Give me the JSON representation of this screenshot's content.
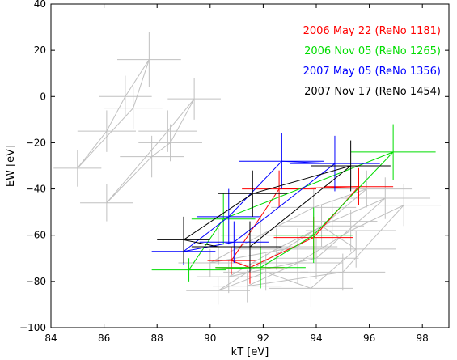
{
  "chart_data": {
    "type": "scatter",
    "title": "",
    "xlabel": "kT [eV]",
    "ylabel": "EW [eV]",
    "xlim": [
      84,
      99
    ],
    "ylim": [
      -100,
      40
    ],
    "xticks": [
      84,
      86,
      88,
      90,
      92,
      94,
      96,
      98
    ],
    "yticks": [
      -100,
      -80,
      -60,
      -40,
      -20,
      0,
      20,
      40
    ],
    "grid": false,
    "legend_placement": "top-right",
    "series": [
      {
        "name": "2006 May 22 (ReNo 1181)",
        "color": "#ff0000",
        "points": [
          {
            "x": 90.8,
            "y": -71,
            "xerr": 0.9,
            "yerr": 6
          },
          {
            "x": 91.5,
            "y": -74,
            "xerr": 1.3,
            "yerr": 7
          },
          {
            "x": 92.6,
            "y": -40,
            "xerr": 1.4,
            "yerr": 8
          },
          {
            "x": 93.9,
            "y": -61,
            "xerr": 1.5,
            "yerr": 9
          },
          {
            "x": 95.6,
            "y": -39,
            "xerr": 1.3,
            "yerr": 8
          }
        ],
        "polygon_order": [
          0,
          1,
          3,
          4,
          2,
          0
        ]
      },
      {
        "name": "2006 Nov 05 (ReNo 1265)",
        "color": "#00dd00",
        "points": [
          {
            "x": 89.2,
            "y": -75,
            "xerr": 1.4,
            "yerr": 5
          },
          {
            "x": 90.5,
            "y": -53,
            "xerr": 1.2,
            "yerr": 11
          },
          {
            "x": 91.9,
            "y": -74,
            "xerr": 1.7,
            "yerr": 9
          },
          {
            "x": 93.9,
            "y": -60,
            "xerr": 1.5,
            "yerr": 12
          },
          {
            "x": 96.9,
            "y": -24,
            "xerr": 1.6,
            "yerr": 12
          }
        ],
        "polygon_order": [
          0,
          1,
          4,
          3,
          2,
          0
        ]
      },
      {
        "name": "2007 May 05 (ReNo 1356)",
        "color": "#0000ff",
        "points": [
          {
            "x": 89.0,
            "y": -67,
            "xerr": 1.2,
            "yerr": 6
          },
          {
            "x": 90.7,
            "y": -52,
            "xerr": 1.2,
            "yerr": 12
          },
          {
            "x": 90.9,
            "y": -63,
            "xerr": 1.3,
            "yerr": 9
          },
          {
            "x": 92.7,
            "y": -28,
            "xerr": 1.6,
            "yerr": 12
          },
          {
            "x": 94.7,
            "y": -29,
            "xerr": 1.7,
            "yerr": 12
          }
        ],
        "polygon_order": [
          0,
          1,
          3,
          4,
          2,
          0
        ]
      },
      {
        "name": "2007 Nov 17 (ReNo 1454)",
        "color": "#000000",
        "points": [
          {
            "x": 89.0,
            "y": -62,
            "xerr": 1.0,
            "yerr": 10
          },
          {
            "x": 90.3,
            "y": -65,
            "xerr": 1.0,
            "yerr": 8
          },
          {
            "x": 91.6,
            "y": -42,
            "xerr": 1.3,
            "yerr": 10
          },
          {
            "x": 91.5,
            "y": -65,
            "xerr": 1.2,
            "yerr": 11
          },
          {
            "x": 95.3,
            "y": -30,
            "xerr": 1.5,
            "yerr": 11
          }
        ],
        "polygon_order": [
          0,
          2,
          4,
          3,
          1,
          0
        ]
      }
    ],
    "background": {
      "color": "#c0c0c0",
      "groups": [
        {
          "points": [
            {
              "x": 85.0,
              "y": -31,
              "xerr": 0.9,
              "yerr": 8
            },
            {
              "x": 86.1,
              "y": -15,
              "xerr": 1.1,
              "yerr": 9
            },
            {
              "x": 86.8,
              "y": 0,
              "xerr": 1.0,
              "yerr": 9
            },
            {
              "x": 87.7,
              "y": 16,
              "xerr": 1.2,
              "yerr": 12
            },
            {
              "x": 87.1,
              "y": -5,
              "xerr": 1.1,
              "yerr": 9
            }
          ],
          "polygon_order": [
            0,
            1,
            2,
            3,
            4,
            0
          ]
        },
        {
          "points": [
            {
              "x": 86.1,
              "y": -46,
              "xerr": 1.0,
              "yerr": 8
            },
            {
              "x": 87.8,
              "y": -26,
              "xerr": 1.2,
              "yerr": 9
            },
            {
              "x": 88.5,
              "y": -20,
              "xerr": 1.2,
              "yerr": 8
            },
            {
              "x": 89.4,
              "y": -1,
              "xerr": 1.0,
              "yerr": 9
            },
            {
              "x": 88.4,
              "y": -15,
              "xerr": 1.1,
              "yerr": 9
            }
          ],
          "polygon_order": [
            0,
            1,
            2,
            3,
            4,
            0
          ]
        },
        {
          "points": [
            {
              "x": 90.0,
              "y": -72,
              "xerr": 1.2,
              "yerr": 6
            },
            {
              "x": 91.9,
              "y": -60,
              "xerr": 1.5,
              "yerr": 8
            },
            {
              "x": 93.9,
              "y": -48,
              "xerr": 1.6,
              "yerr": 8
            },
            {
              "x": 95.9,
              "y": -40,
              "xerr": 1.7,
              "yerr": 8
            },
            {
              "x": 93.3,
              "y": -65,
              "xerr": 1.5,
              "yerr": 8
            }
          ],
          "polygon_order": [
            0,
            1,
            2,
            3,
            4,
            0
          ]
        },
        {
          "points": [
            {
              "x": 90.7,
              "y": -78,
              "xerr": 1.2,
              "yerr": 7
            },
            {
              "x": 92.5,
              "y": -66,
              "xerr": 1.6,
              "yerr": 9
            },
            {
              "x": 94.6,
              "y": -54,
              "xerr": 1.7,
              "yerr": 9
            },
            {
              "x": 96.6,
              "y": -44,
              "xerr": 1.7,
              "yerr": 9
            },
            {
              "x": 94.0,
              "y": -70,
              "xerr": 1.6,
              "yerr": 9
            }
          ],
          "polygon_order": [
            0,
            1,
            2,
            3,
            4,
            0
          ]
        },
        {
          "points": [
            {
              "x": 91.4,
              "y": -82,
              "xerr": 1.3,
              "yerr": 7
            },
            {
              "x": 93.3,
              "y": -72,
              "xerr": 1.7,
              "yerr": 9
            },
            {
              "x": 95.3,
              "y": -58,
              "xerr": 1.7,
              "yerr": 9
            },
            {
              "x": 97.3,
              "y": -47,
              "xerr": 1.4,
              "yerr": 9
            },
            {
              "x": 95.0,
              "y": -76,
              "xerr": 1.6,
              "yerr": 8
            }
          ],
          "polygon_order": [
            0,
            1,
            2,
            3,
            4,
            0
          ]
        },
        {
          "points": [
            {
              "x": 90.3,
              "y": -84,
              "xerr": 1.2,
              "yerr": 6
            },
            {
              "x": 92.1,
              "y": -76,
              "xerr": 1.6,
              "yerr": 8
            },
            {
              "x": 93.8,
              "y": -83,
              "xerr": 1.6,
              "yerr": 8
            },
            {
              "x": 95.5,
              "y": -66,
              "xerr": 1.5,
              "yerr": 8
            },
            {
              "x": 94.2,
              "y": -56,
              "xerr": 1.6,
              "yerr": 9
            }
          ],
          "polygon_order": [
            0,
            1,
            2,
            3,
            4,
            0
          ]
        }
      ]
    }
  }
}
